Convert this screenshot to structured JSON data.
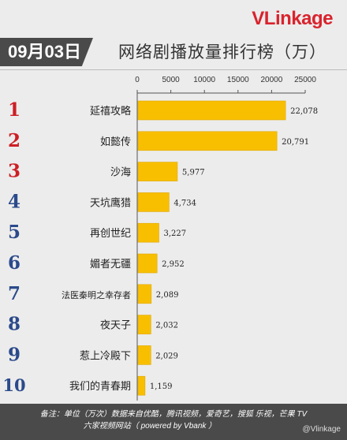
{
  "logo": {
    "v": "V",
    "rest": "Linkage"
  },
  "header": {
    "date": "09月03日",
    "title": "网络剧播放量排行榜（万）"
  },
  "footer": {
    "line1": "备注：单位（万次）数据来自优酷，腾讯视频，爱奇艺，搜狐  乐视，芒果 TV",
    "line2": "六家视频网站（ powered by Vbank ）",
    "watermark": "@Vlinkage"
  },
  "colors": {
    "bar": "#f8bf00",
    "rank_red": "#cc1f24",
    "rank_blue": "#2b4a8b",
    "header_bg": "#4a4a4a"
  },
  "chart_data": {
    "type": "bar",
    "orientation": "horizontal",
    "xlim": [
      0,
      25000
    ],
    "xticks": [
      "0",
      "5000",
      "10000",
      "15000",
      "20000",
      "25000"
    ],
    "ranks": [
      "1",
      "2",
      "3",
      "4",
      "5",
      "6",
      "7",
      "8",
      "9",
      "10"
    ],
    "categories": [
      "延禧攻略",
      "如懿传",
      "沙海",
      "天坑鹰猎",
      "再创世纪",
      "媚者无疆",
      "法医秦明之幸存者",
      "夜天子",
      "惹上冷殿下",
      "我们的青春期"
    ],
    "values": [
      22078,
      20791,
      5977,
      4734,
      3227,
      2952,
      2089,
      2032,
      2029,
      1159
    ],
    "value_labels": [
      "22,078",
      "20,791",
      "5,977",
      "4,734",
      "3,227",
      "2,952",
      "2,089",
      "2,032",
      "2,029",
      "1,159"
    ],
    "gridlines": false
  }
}
